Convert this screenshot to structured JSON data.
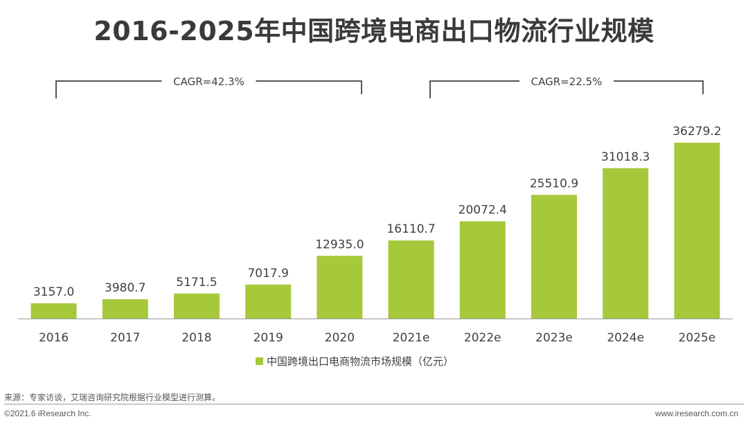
{
  "title": "2016-2025年中国跨境电商出口物流行业规模",
  "chart_data": {
    "type": "bar",
    "categories": [
      "2016",
      "2017",
      "2018",
      "2019",
      "2020",
      "2021e",
      "2022e",
      "2023e",
      "2024e",
      "2025e"
    ],
    "series": [
      {
        "name": "中国跨境出口电商物流市场规模（亿元）",
        "values": [
          3157.0,
          3980.7,
          5171.5,
          7017.9,
          12935.0,
          16110.7,
          20072.4,
          25510.9,
          31018.3,
          36279.2
        ],
        "labels": [
          "3157.0",
          "3980.7",
          "5171.5",
          "7017.9",
          "12935.0",
          "16110.7",
          "20072.4",
          "25510.9",
          "31018.3",
          "36279.2"
        ]
      }
    ],
    "ylim": [
      0,
      40000
    ],
    "grid": false,
    "legend": "bottom-center",
    "annotations": [
      {
        "text": "CAGR=42.3%",
        "from": "2016",
        "to": "2020"
      },
      {
        "text": "CAGR=22.5%",
        "from": "2021e",
        "to": "2025e"
      }
    ]
  },
  "colors": {
    "bar": "#a5c93b",
    "axis": "#9a9a9a",
    "bracket": "#555555"
  },
  "footer": {
    "source": "来源：专家访谈，艾瑞咨询研究院根据行业模型进行测算。",
    "copyright": "©2021.6 iResearch Inc.",
    "website": "www.iresearch.com.cn"
  }
}
